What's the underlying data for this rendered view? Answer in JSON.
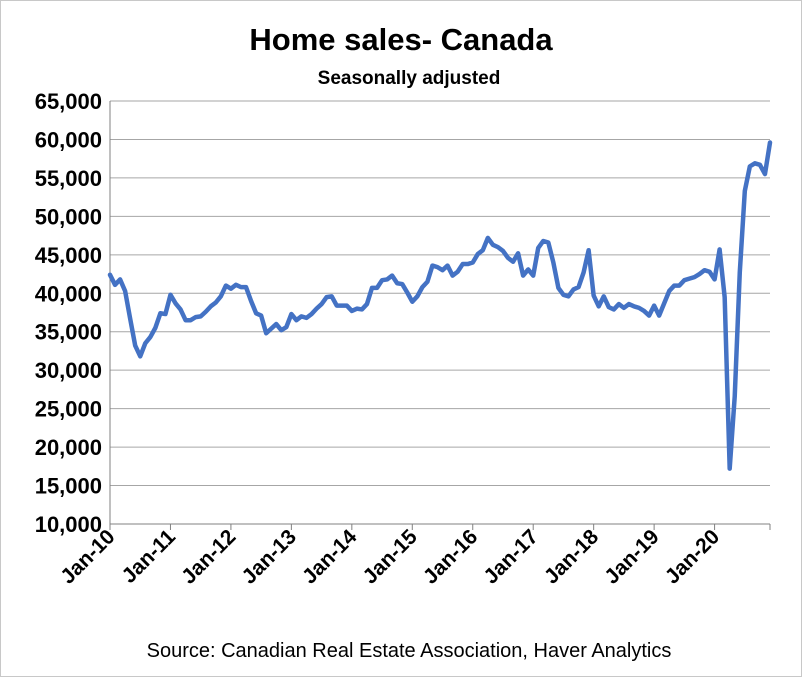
{
  "chart_data": {
    "type": "line",
    "title": "Home sales- Canada",
    "subtitle": "Seasonally adjusted",
    "source": "Source: Canadian Real Estate Association, Haver Analytics",
    "xlabel": "",
    "ylabel": "",
    "ylim": [
      10000,
      65000
    ],
    "yticks": [
      10000,
      15000,
      20000,
      25000,
      30000,
      35000,
      40000,
      45000,
      50000,
      55000,
      60000,
      65000
    ],
    "ytick_labels": [
      "10,000",
      "15,000",
      "20,000",
      "25,000",
      "30,000",
      "35,000",
      "40,000",
      "45,000",
      "50,000",
      "55,000",
      "60,000",
      "65,000"
    ],
    "xtick_labels": [
      "Jan-10",
      "Jan-11",
      "Jan-12",
      "Jan-13",
      "Jan-14",
      "Jan-15",
      "Jan-16",
      "Jan-17",
      "Jan-18",
      "Jan-19",
      "Jan-20"
    ],
    "grid": "horizontal",
    "line_color": "#4472c4",
    "x": [
      "2010-01",
      "2010-02",
      "2010-03",
      "2010-04",
      "2010-05",
      "2010-06",
      "2010-07",
      "2010-08",
      "2010-09",
      "2010-10",
      "2010-11",
      "2010-12",
      "2011-01",
      "2011-02",
      "2011-03",
      "2011-04",
      "2011-05",
      "2011-06",
      "2011-07",
      "2011-08",
      "2011-09",
      "2011-10",
      "2011-11",
      "2011-12",
      "2012-01",
      "2012-02",
      "2012-03",
      "2012-04",
      "2012-05",
      "2012-06",
      "2012-07",
      "2012-08",
      "2012-09",
      "2012-10",
      "2012-11",
      "2012-12",
      "2013-01",
      "2013-02",
      "2013-03",
      "2013-04",
      "2013-05",
      "2013-06",
      "2013-07",
      "2013-08",
      "2013-09",
      "2013-10",
      "2013-11",
      "2013-12",
      "2014-01",
      "2014-02",
      "2014-03",
      "2014-04",
      "2014-05",
      "2014-06",
      "2014-07",
      "2014-08",
      "2014-09",
      "2014-10",
      "2014-11",
      "2014-12",
      "2015-01",
      "2015-02",
      "2015-03",
      "2015-04",
      "2015-05",
      "2015-06",
      "2015-07",
      "2015-08",
      "2015-09",
      "2015-10",
      "2015-11",
      "2015-12",
      "2016-01",
      "2016-02",
      "2016-03",
      "2016-04",
      "2016-05",
      "2016-06",
      "2016-07",
      "2016-08",
      "2016-09",
      "2016-10",
      "2016-11",
      "2016-12",
      "2017-01",
      "2017-02",
      "2017-03",
      "2017-04",
      "2017-05",
      "2017-06",
      "2017-07",
      "2017-08",
      "2017-09",
      "2017-10",
      "2017-11",
      "2017-12",
      "2018-01",
      "2018-02",
      "2018-03",
      "2018-04",
      "2018-05",
      "2018-06",
      "2018-07",
      "2018-08",
      "2018-09",
      "2018-10",
      "2018-11",
      "2018-12",
      "2019-01",
      "2019-02",
      "2019-03",
      "2019-04",
      "2019-05",
      "2019-06",
      "2019-07",
      "2019-08",
      "2019-09",
      "2019-10",
      "2019-11",
      "2019-12",
      "2020-01",
      "2020-02",
      "2020-03",
      "2020-04",
      "2020-05",
      "2020-06",
      "2020-07",
      "2020-08",
      "2020-09",
      "2020-10",
      "2020-11",
      "2020-12"
    ],
    "series": [
      {
        "values": [
          42400,
          41100,
          41800,
          40300,
          36700,
          33200,
          31800,
          33500,
          34300,
          35500,
          37400,
          37300,
          39800,
          38700,
          37900,
          36500,
          36500,
          36900,
          37000,
          37600,
          38300,
          38800,
          39600,
          41000,
          40600,
          41100,
          40800,
          40800,
          39000,
          37400,
          37100,
          34800,
          35400,
          36000,
          35200,
          35600,
          37300,
          36500,
          37000,
          36800,
          37300,
          38000,
          38600,
          39500,
          39600,
          38400,
          38400,
          38400,
          37700,
          38000,
          37900,
          38600,
          40700,
          40700,
          41700,
          41800,
          42300,
          41300,
          41200,
          40100,
          38900,
          39600,
          40800,
          41500,
          43600,
          43400,
          43000,
          43600,
          42300,
          42800,
          43800,
          43800,
          44000,
          45100,
          45600,
          47200,
          46300,
          46000,
          45500,
          44600,
          44100,
          45200,
          42300,
          43100,
          42300,
          45900,
          46800,
          46600,
          44000,
          40700,
          39800,
          39600,
          40500,
          40800,
          42700,
          45600,
          39700,
          38300,
          39600,
          38200,
          37900,
          38600,
          38100,
          38600,
          38300,
          38100,
          37700,
          37100,
          38400,
          37100,
          38700,
          40300,
          41000,
          41000,
          41700,
          41900,
          42100,
          42500,
          43000,
          42800,
          41800,
          45700,
          39500,
          17200,
          26600,
          42700,
          53300,
          56500,
          56900,
          56700,
          55500,
          59600
        ]
      }
    ]
  }
}
